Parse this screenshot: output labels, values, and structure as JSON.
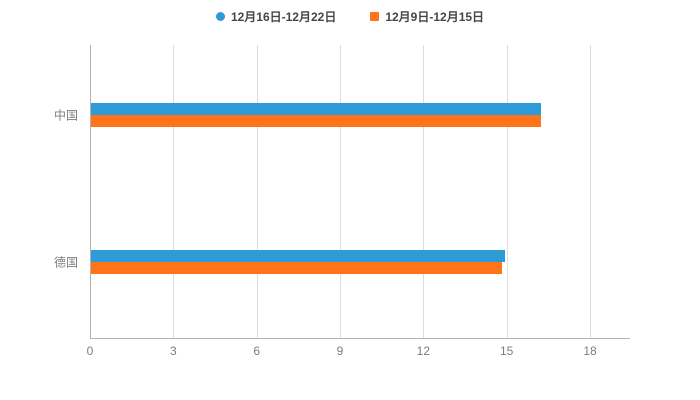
{
  "chart_data": {
    "type": "bar",
    "orientation": "horizontal",
    "title": "",
    "xlabel": "",
    "ylabel": "",
    "categories": [
      "中国",
      "德国"
    ],
    "series": [
      {
        "name": "12月16日-12月22日",
        "color": "#2e9bd6",
        "marker": "circle",
        "values": [
          16.2,
          14.9
        ]
      },
      {
        "name": "12月9日-12月15日",
        "color": "#ff7418",
        "marker": "square",
        "values": [
          16.2,
          14.8
        ]
      }
    ],
    "xlim": [
      0,
      18
    ],
    "xticks": [
      0,
      3,
      6,
      9,
      12,
      15,
      18
    ],
    "grid": true,
    "legend_position": "top"
  },
  "legend": {
    "item1_label": "12月16日-12月22日",
    "item2_label": "12月9日-12月15日"
  },
  "colors": {
    "series_blue": "#2e9bd6",
    "series_orange": "#ff7418",
    "axis_text": "#7d7d7d",
    "gridline": "#dcdcdc",
    "axis_line": "#b3b3b3",
    "background": "#ffffff"
  }
}
